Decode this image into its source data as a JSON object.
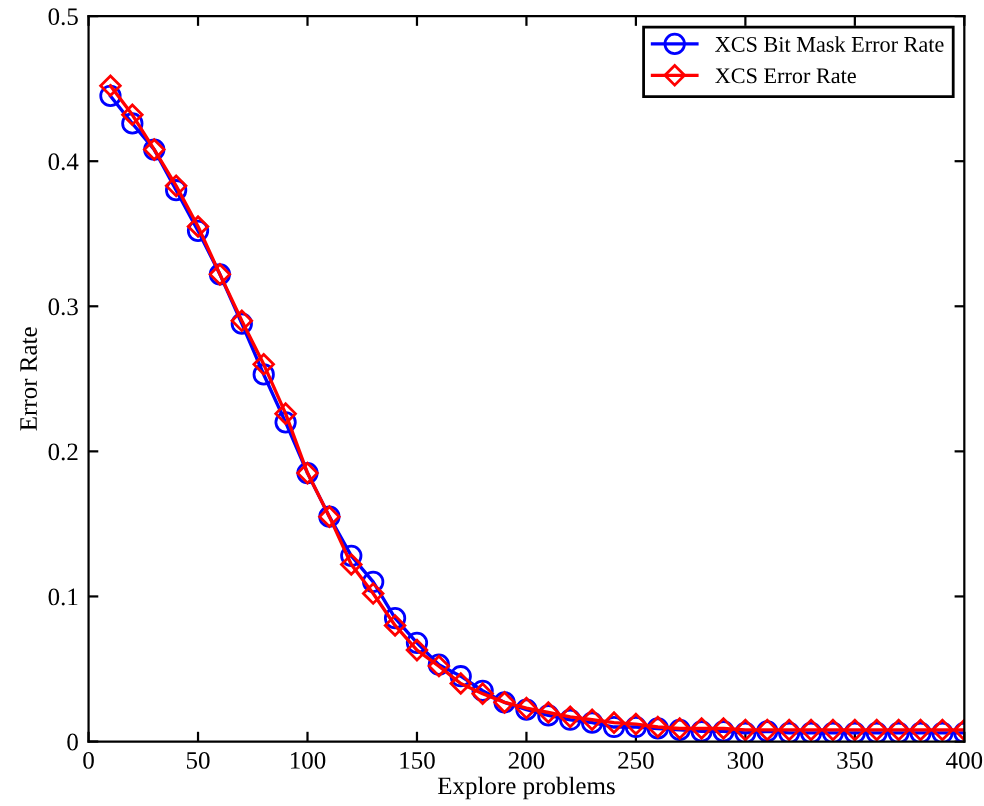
{
  "chart_data": {
    "type": "line",
    "xlabel": "Explore problems",
    "ylabel": "Error Rate",
    "x": [
      10,
      20,
      30,
      40,
      50,
      60,
      70,
      80,
      90,
      100,
      110,
      120,
      130,
      140,
      150,
      160,
      170,
      180,
      190,
      200,
      210,
      220,
      230,
      240,
      250,
      260,
      270,
      280,
      290,
      300,
      310,
      320,
      330,
      340,
      350,
      360,
      370,
      380,
      390,
      400
    ],
    "series": [
      {
        "name": "XCS Bit Mask Error Rate",
        "color": "#0000ff",
        "marker": "circle",
        "values": [
          0.445,
          0.426,
          0.408,
          0.38,
          0.352,
          0.322,
          0.288,
          0.253,
          0.22,
          0.185,
          0.155,
          0.128,
          0.11,
          0.085,
          0.068,
          0.053,
          0.045,
          0.035,
          0.027,
          0.022,
          0.018,
          0.015,
          0.013,
          0.01,
          0.01,
          0.009,
          0.008,
          0.007,
          0.007,
          0.006,
          0.007,
          0.006,
          0.006,
          0.006,
          0.006,
          0.006,
          0.006,
          0.006,
          0.006,
          0.006
        ]
      },
      {
        "name": "XCS Error Rate",
        "color": "#ff0000",
        "marker": "diamond",
        "values": [
          0.452,
          0.432,
          0.408,
          0.383,
          0.355,
          0.322,
          0.29,
          0.26,
          0.226,
          0.185,
          0.155,
          0.122,
          0.102,
          0.08,
          0.063,
          0.052,
          0.04,
          0.033,
          0.027,
          0.023,
          0.02,
          0.017,
          0.015,
          0.013,
          0.012,
          0.01,
          0.009,
          0.009,
          0.009,
          0.008,
          0.008,
          0.008,
          0.008,
          0.008,
          0.008,
          0.008,
          0.008,
          0.008,
          0.008,
          0.008
        ]
      }
    ],
    "xlim": [
      0,
      400
    ],
    "xticks": [
      0,
      50,
      100,
      150,
      200,
      250,
      300,
      350,
      400
    ],
    "ylim": [
      0,
      0.5
    ],
    "yticks": [
      0,
      0.1,
      0.2,
      0.3,
      0.4,
      0.5
    ],
    "legend": "top right",
    "grid": false,
    "line_style": "solid"
  }
}
